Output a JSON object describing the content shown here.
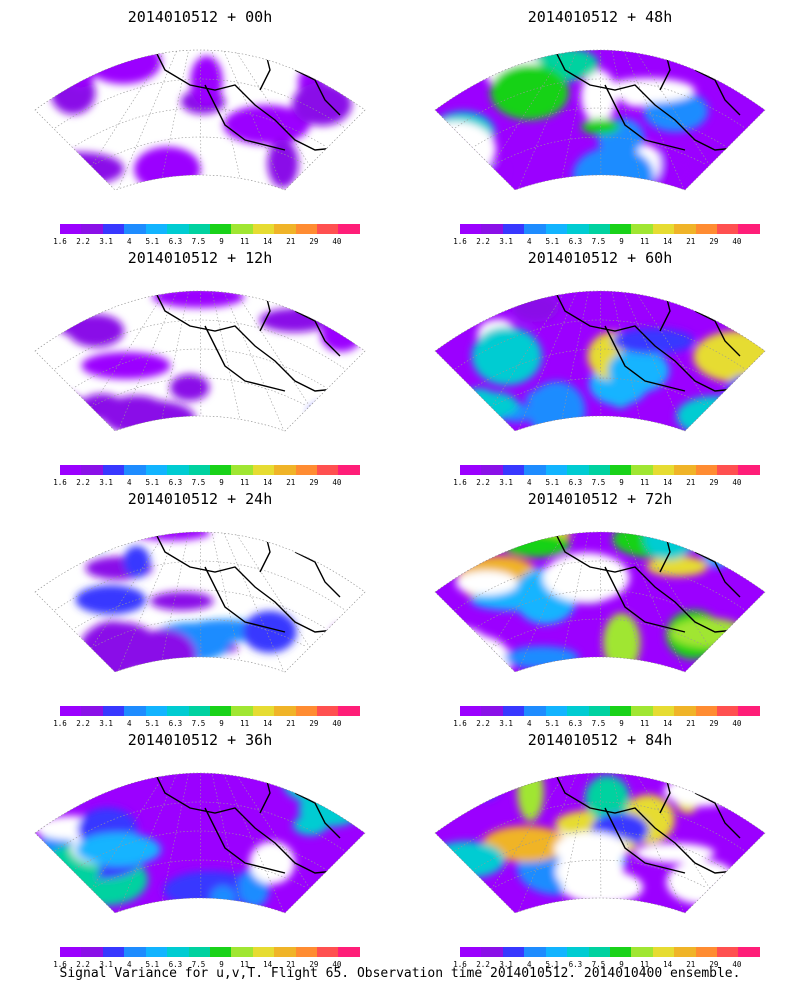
{
  "panels": [
    {
      "title": "2014010512 + 00h",
      "intensity": 0.15
    },
    {
      "title": "2014010512 + 48h",
      "intensity": 0.65
    },
    {
      "title": "2014010512 + 12h",
      "intensity": 0.3
    },
    {
      "title": "2014010512 + 60h",
      "intensity": 0.75
    },
    {
      "title": "2014010512 + 24h",
      "intensity": 0.45
    },
    {
      "title": "2014010512 + 72h",
      "intensity": 0.85
    },
    {
      "title": "2014010512 + 36h",
      "intensity": 0.55
    },
    {
      "title": "2014010512 + 84h",
      "intensity": 0.9
    }
  ],
  "colorbar": {
    "colors": [
      "#9b00ff",
      "#8a10e8",
      "#3838ff",
      "#1e8cff",
      "#12b4ff",
      "#00ccd2",
      "#00d2a0",
      "#19d219",
      "#a0e632",
      "#e6dc32",
      "#f0b428",
      "#ff8c32",
      "#ff5050",
      "#ff1e78"
    ],
    "labels": [
      "1.6",
      "2.2",
      "3.1",
      "4",
      "5.1",
      "6.3",
      "7.5",
      "9",
      "11",
      "14",
      "21",
      "29",
      "40"
    ]
  },
  "caption": "Signal Variance for u,v,T. Flight 65. Observation time 2014010512. 2014010400 ensemble."
}
